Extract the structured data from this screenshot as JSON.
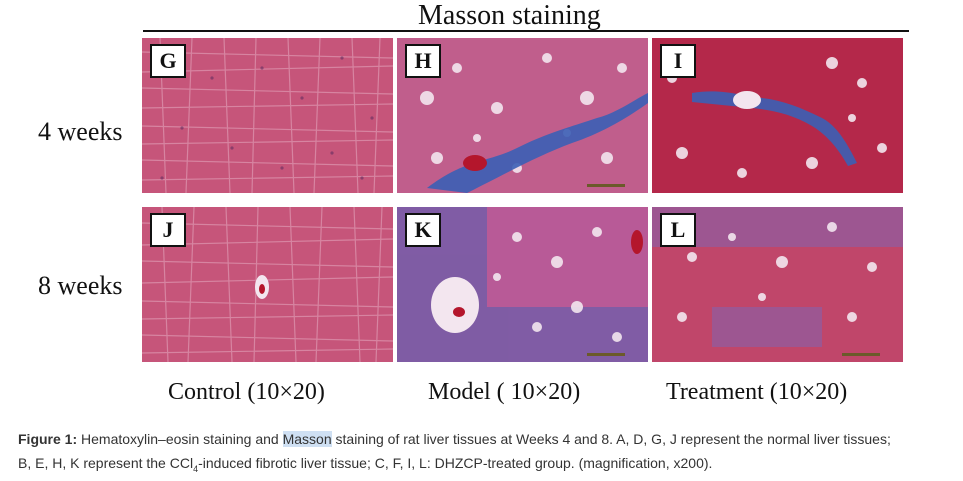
{
  "figure": {
    "title": "Masson staining",
    "rows": [
      "4 weeks",
      "8 weeks"
    ],
    "columns": [
      "Control (10×20)",
      "Model ( 10×20)",
      "Treatment (10×20)"
    ],
    "panels": [
      {
        "letter": "G",
        "stain": "control"
      },
      {
        "letter": "H",
        "stain": "model"
      },
      {
        "letter": "I",
        "stain": "treatment"
      },
      {
        "letter": "J",
        "stain": "control"
      },
      {
        "letter": "K",
        "stain": "model"
      },
      {
        "letter": "L",
        "stain": "treatment"
      }
    ],
    "colors": {
      "control_base": "#c6557a",
      "model_base": "#c05e8c",
      "treatment_base": "#b4284a",
      "collagen_blue": "#3b5fb5",
      "scale_bar": "#6b5a2a"
    }
  },
  "caption": {
    "lead": "Figure 1:",
    "part1": " Hematoxylin–eosin staining and ",
    "highlight": "Masson",
    "part2": " staining of rat liver tissues at Weeks 4 and 8. A, D, G, J represent the normal liver tissues;",
    "part3": "B, E, H, K represent the  CCl",
    "sub": "4",
    "part4": "-induced fibrotic liver tissue; C, F, I, L: DHZCP-treated group. (magnification, x200)."
  }
}
